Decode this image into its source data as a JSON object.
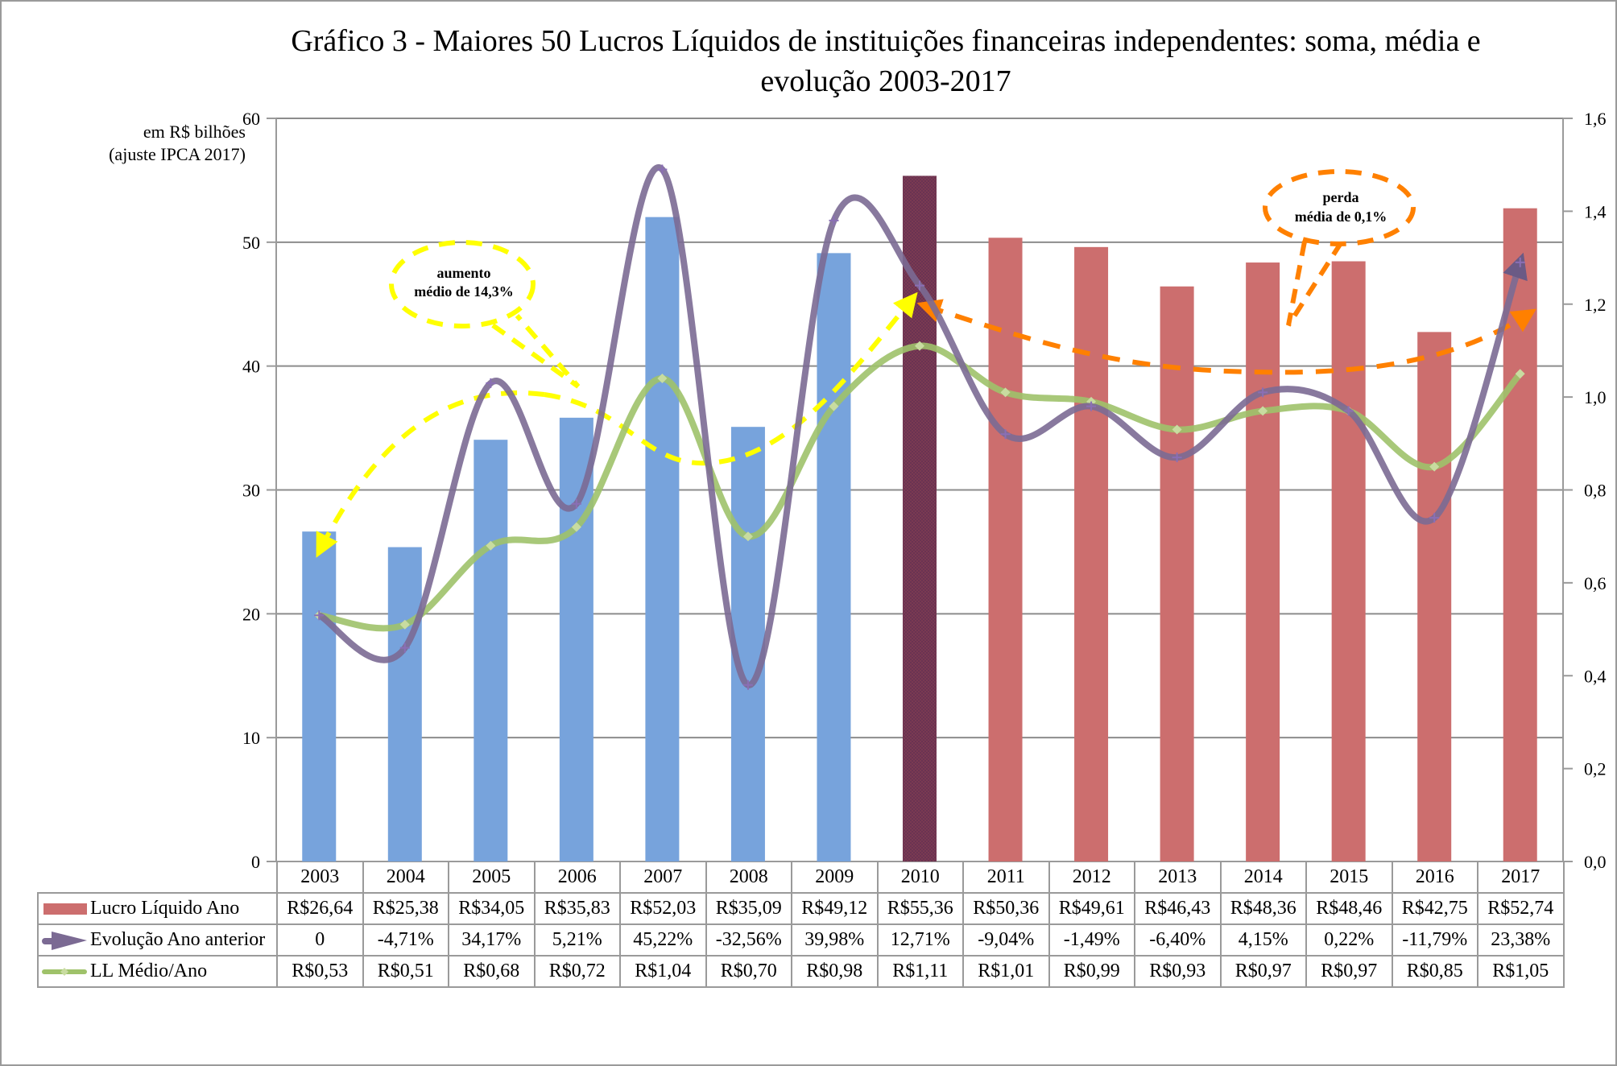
{
  "title_line1": "Gráfico 3 - Maiores 50 Lucros Líquidos de instituições financeiras independentes: soma, média e",
  "title_line2": "evolução 2003-2017",
  "y_unit_line1": "em R$ bilhões",
  "y_unit_line2": "(ajuste IPCA 2017)",
  "colors": {
    "bar_blue": "#77a3dc",
    "bar_red": "#cc6e6e",
    "bar_highlight": "#7a3a52",
    "line_purple": "#7b6a93",
    "line_green": "#9fc26a",
    "annotation_yellow": "#ffff00",
    "annotation_orange": "#ff8000",
    "gridline": "#8c8c8c"
  },
  "annotations": [
    {
      "line1": "aumento",
      "line2": "médio de 14,3%",
      "color": "yellow"
    },
    {
      "line1": "perda",
      "line2": "média de 0,1%",
      "color": "orange"
    }
  ],
  "chart_data": {
    "type": "bar",
    "title": "Gráfico 3 - Maiores 50 Lucros Líquidos de instituições financeiras independentes: soma, média e evolução 2003-2017",
    "ylabel": "em R$ bilhões (ajuste IPCA 2017)",
    "ylim": [
      0,
      60
    ],
    "y_ticks": [
      "0",
      "10",
      "20",
      "30",
      "40",
      "50",
      "60"
    ],
    "y2lim": [
      0,
      1.6
    ],
    "y2_ticks": [
      "0,0",
      "0,2",
      "0,4",
      "0,6",
      "0,8",
      "1,0",
      "1,2",
      "1,4",
      "1,6"
    ],
    "grid": true,
    "legend": "table-bottom",
    "categories": [
      "2003",
      "2004",
      "2005",
      "2006",
      "2007",
      "2008",
      "2009",
      "2010",
      "2011",
      "2012",
      "2013",
      "2014",
      "2015",
      "2016",
      "2017"
    ],
    "series": [
      {
        "name": "Lucro Líquido Ano",
        "type": "bar",
        "axis": "left",
        "values": [
          26.64,
          25.38,
          34.05,
          35.83,
          52.03,
          35.09,
          49.12,
          55.36,
          50.36,
          49.61,
          46.43,
          48.36,
          48.46,
          42.75,
          52.74
        ],
        "labels": [
          "R$26,64",
          "R$25,38",
          "R$34,05",
          "R$35,83",
          "R$52,03",
          "R$35,09",
          "R$49,12",
          "R$55,36",
          "R$50,36",
          "R$49,61",
          "R$46,43",
          "R$48,36",
          "R$48,46",
          "R$42,75",
          "R$52,74"
        ],
        "bar_color_group": [
          "blue",
          "blue",
          "blue",
          "blue",
          "blue",
          "blue",
          "blue",
          "highlight",
          "red",
          "red",
          "red",
          "red",
          "red",
          "red",
          "red"
        ]
      },
      {
        "name": "Evolução Ano anterior",
        "type": "line",
        "axis": "right",
        "values_pct": [
          0,
          -4.71,
          34.17,
          5.21,
          45.22,
          -32.56,
          39.98,
          12.71,
          -9.04,
          -1.49,
          -6.4,
          4.15,
          0.22,
          -11.79,
          23.38
        ],
        "labels": [
          "0",
          "-4,71%",
          "34,17%",
          "5,21%",
          "45,22%",
          "-32,56%",
          "39,98%",
          "12,71%",
          "-9,04%",
          "-1,49%",
          "-6,40%",
          "4,15%",
          "0,22%",
          "-11,79%",
          "23,38%"
        ],
        "plotted_values": [
          0.53,
          0.46,
          1.03,
          0.77,
          1.49,
          0.38,
          1.38,
          1.24,
          0.92,
          0.98,
          0.87,
          1.01,
          0.97,
          0.74,
          1.29
        ]
      },
      {
        "name": "LL Médio/Ano",
        "type": "line",
        "axis": "right",
        "values": [
          0.53,
          0.51,
          0.68,
          0.72,
          1.04,
          0.7,
          0.98,
          1.11,
          1.01,
          0.99,
          0.93,
          0.97,
          0.97,
          0.85,
          1.05
        ],
        "labels": [
          "R$0,53",
          "R$0,51",
          "R$0,68",
          "R$0,72",
          "R$1,04",
          "R$0,70",
          "R$0,98",
          "R$1,11",
          "R$1,01",
          "R$0,99",
          "R$0,93",
          "R$0,97",
          "R$0,97",
          "R$0,85",
          "R$1,05"
        ]
      }
    ]
  }
}
